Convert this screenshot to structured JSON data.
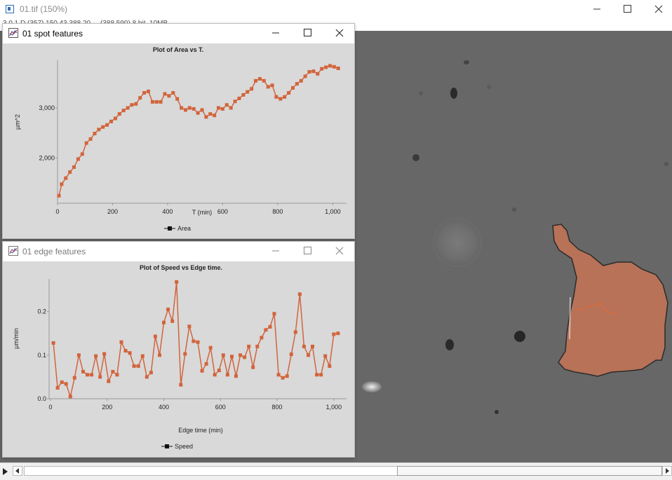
{
  "app": {
    "title": "01.tif (150%)",
    "info": "3 0 1 D (357) 150 43 388 20 ... (388 590) 8 bit, 10MB"
  },
  "window_controls": {
    "minimize_icon": "minimize-icon",
    "maximize_icon": "maximize-icon",
    "close_icon": "close-icon"
  },
  "colors": {
    "accent": "#d2643c",
    "plot_bg": "#d9d9d9",
    "image_bg": "#666666"
  },
  "spot_window": {
    "title": "01 spot features",
    "chart_data": {
      "type": "line",
      "title": "Plot of Area vs T.",
      "xlabel": "T (min)",
      "ylabel": "µm^2",
      "xlim": [
        0,
        1050
      ],
      "ylim": [
        1100,
        3950
      ],
      "xticks": [
        {
          "v": 0,
          "l": "0"
        },
        {
          "v": 200,
          "l": "200"
        },
        {
          "v": 400,
          "l": "400"
        },
        {
          "v": 600,
          "l": "600"
        },
        {
          "v": 800,
          "l": "800"
        },
        {
          "v": 1000,
          "l": "1,000"
        }
      ],
      "yticks": [
        {
          "v": 2000,
          "l": "2,000"
        },
        {
          "v": 3000,
          "l": "3,000"
        }
      ],
      "legend": "bottom-center",
      "series": [
        {
          "name": "Area",
          "x": [
            5,
            15,
            30,
            45,
            60,
            75,
            90,
            105,
            120,
            135,
            150,
            165,
            180,
            195,
            210,
            225,
            240,
            255,
            270,
            285,
            300,
            315,
            330,
            345,
            360,
            375,
            390,
            405,
            420,
            435,
            450,
            465,
            480,
            495,
            510,
            525,
            540,
            555,
            570,
            585,
            600,
            615,
            630,
            645,
            660,
            675,
            690,
            705,
            720,
            735,
            750,
            765,
            780,
            795,
            810,
            825,
            840,
            855,
            870,
            885,
            900,
            915,
            930,
            945,
            960,
            975,
            990,
            1005,
            1020
          ],
          "y": [
            1250,
            1480,
            1600,
            1720,
            1820,
            1980,
            2080,
            2300,
            2380,
            2490,
            2570,
            2620,
            2660,
            2730,
            2790,
            2880,
            2950,
            3000,
            3060,
            3080,
            3200,
            3300,
            3330,
            3120,
            3120,
            3120,
            3280,
            3240,
            3300,
            3180,
            3000,
            2960,
            3000,
            2980,
            2900,
            2960,
            2820,
            2880,
            2850,
            3000,
            2980,
            3060,
            3000,
            3130,
            3190,
            3260,
            3320,
            3380,
            3540,
            3580,
            3540,
            3420,
            3450,
            3220,
            3180,
            3220,
            3300,
            3400,
            3480,
            3540,
            3630,
            3720,
            3730,
            3680,
            3780,
            3810,
            3840,
            3820,
            3790
          ]
        }
      ]
    }
  },
  "edge_window": {
    "title": "01 edge features",
    "chart_data": {
      "type": "line",
      "title": "Plot of Speed vs Edge time.",
      "xlabel": "Edge time (min)",
      "ylabel": "µm/min",
      "xlim": [
        -5,
        1045
      ],
      "ylim": [
        0,
        0.275
      ],
      "xticks": [
        {
          "v": 0,
          "l": "0"
        },
        {
          "v": 200,
          "l": "200"
        },
        {
          "v": 400,
          "l": "400"
        },
        {
          "v": 600,
          "l": "600"
        },
        {
          "v": 800,
          "l": "800"
        },
        {
          "v": 1000,
          "l": "1,000"
        }
      ],
      "yticks": [
        {
          "v": 0,
          "l": "0.0"
        },
        {
          "v": 0.1,
          "l": "0.1"
        },
        {
          "v": 0.2,
          "l": "0.2"
        }
      ],
      "legend": "bottom-center",
      "series": [
        {
          "name": "Speed",
          "x": [
            10,
            25,
            40,
            55,
            70,
            85,
            100,
            115,
            130,
            145,
            160,
            175,
            190,
            205,
            220,
            235,
            250,
            265,
            280,
            295,
            310,
            325,
            340,
            355,
            370,
            385,
            400,
            415,
            430,
            445,
            460,
            475,
            490,
            505,
            520,
            535,
            550,
            565,
            580,
            595,
            610,
            625,
            640,
            655,
            670,
            685,
            700,
            715,
            730,
            745,
            760,
            775,
            790,
            805,
            820,
            835,
            850,
            865,
            880,
            895,
            910,
            925,
            940,
            955,
            970,
            985,
            1000,
            1015
          ],
          "y": [
            0.128,
            0.025,
            0.038,
            0.034,
            0.005,
            0.048,
            0.1,
            0.062,
            0.055,
            0.055,
            0.098,
            0.05,
            0.103,
            0.04,
            0.062,
            0.055,
            0.13,
            0.11,
            0.105,
            0.075,
            0.075,
            0.098,
            0.05,
            0.06,
            0.143,
            0.1,
            0.175,
            0.205,
            0.178,
            0.268,
            0.032,
            0.103,
            0.166,
            0.132,
            0.13,
            0.064,
            0.08,
            0.117,
            0.055,
            0.065,
            0.1,
            0.055,
            0.097,
            0.052,
            0.1,
            0.095,
            0.12,
            0.072,
            0.12,
            0.14,
            0.158,
            0.165,
            0.195,
            0.055,
            0.048,
            0.052,
            0.102,
            0.153,
            0.24,
            0.12,
            0.1,
            0.12,
            0.055,
            0.055,
            0.098,
            0.075,
            0.148,
            0.15
          ]
        }
      ]
    }
  }
}
